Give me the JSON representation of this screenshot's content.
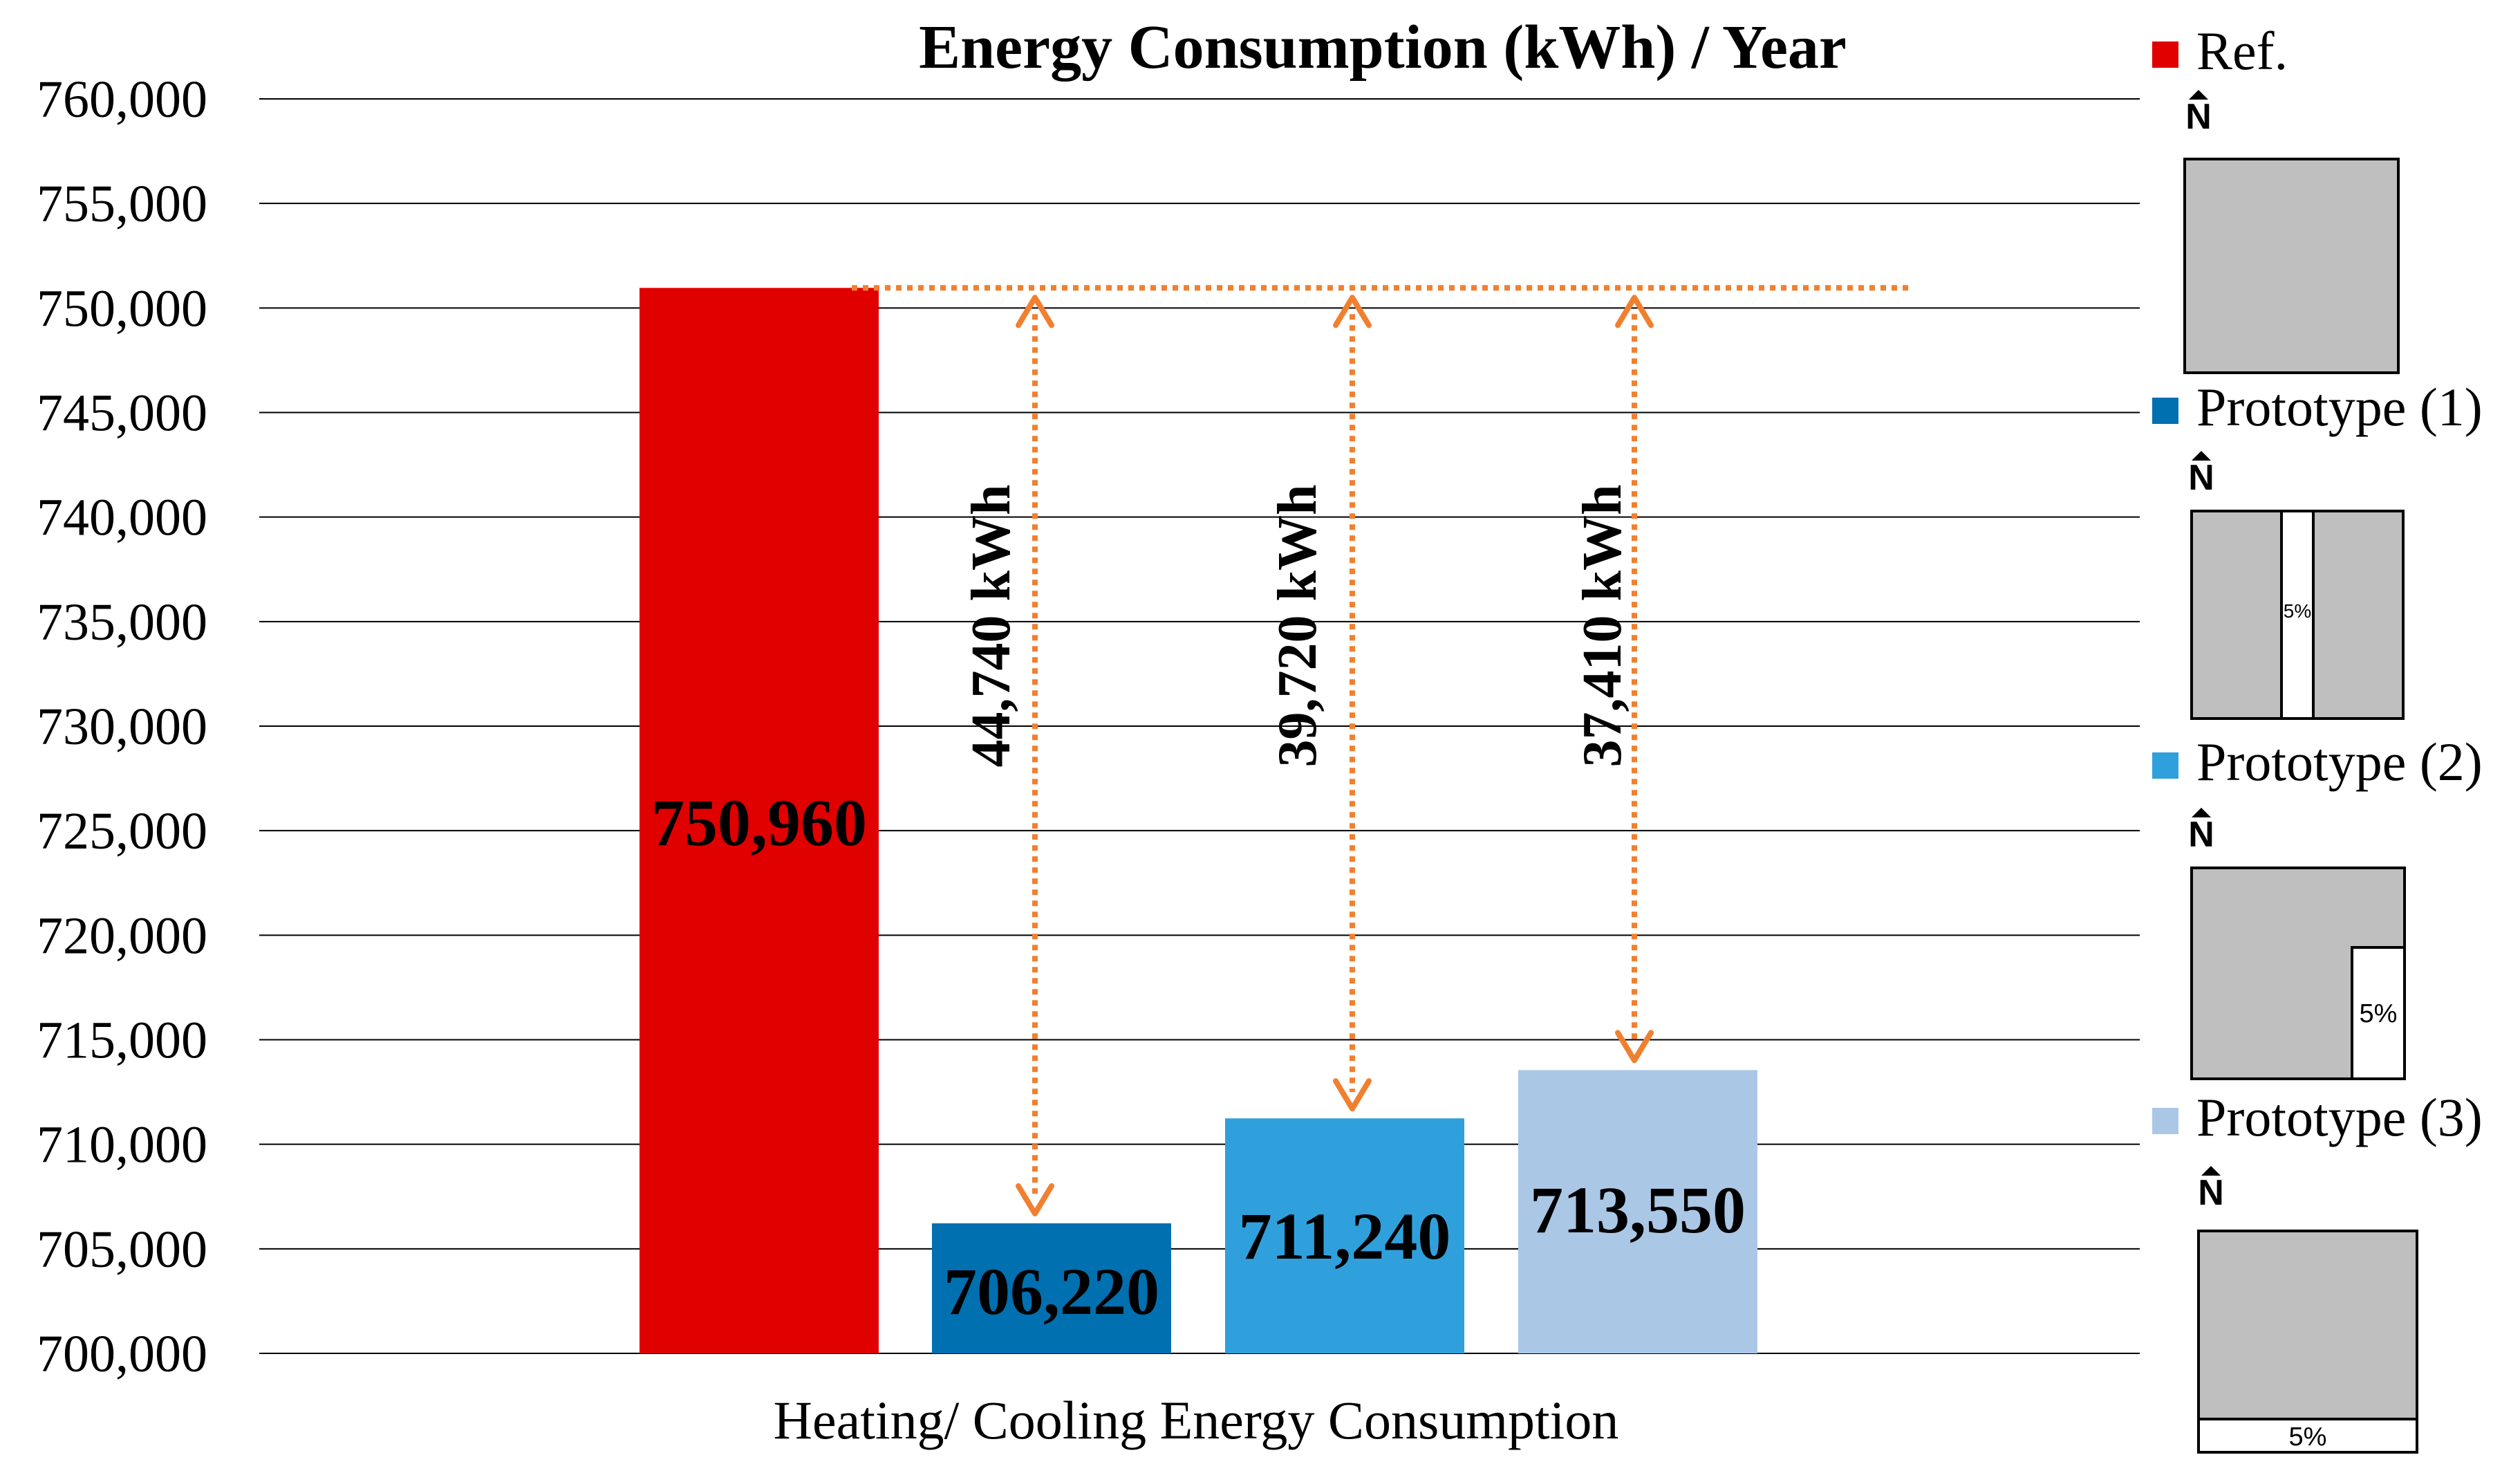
{
  "chart_data": {
    "type": "bar",
    "title": "Energy Consumption (kWh) / Year",
    "xlabel": "Heating/ Cooling Energy Consumption",
    "ylabel": "",
    "ylim": [
      700000,
      760000
    ],
    "y_ticks": [
      700000,
      705000,
      710000,
      715000,
      720000,
      725000,
      730000,
      735000,
      740000,
      745000,
      750000,
      755000,
      760000
    ],
    "y_tick_labels": [
      "700,000",
      "705,000",
      "710,000",
      "715,000",
      "720,000",
      "725,000",
      "730,000",
      "735,000",
      "740,000",
      "745,000",
      "750,000",
      "755,000",
      "760,000"
    ],
    "grid": true,
    "legend_position": "right",
    "series": [
      {
        "name": "Ref.",
        "color": "#e00000",
        "value": 750960,
        "label": "750,960"
      },
      {
        "name": "Prototype (1)",
        "color": "#0070b0",
        "value": 706220,
        "label": "706,220"
      },
      {
        "name": "Prototype (2)",
        "color": "#30a0dc",
        "value": 711240,
        "label": "711,240"
      },
      {
        "name": "Prototype (3)",
        "color": "#abc7e6",
        "value": 713550,
        "label": "713,550"
      }
    ],
    "annotations": [
      {
        "text": "44,740 kWh",
        "to_series": 1
      },
      {
        "text": "39,720 kWh",
        "to_series": 2
      },
      {
        "text": "37,410 kWh",
        "to_series": 3
      }
    ],
    "reference_line": {
      "value": 750960,
      "color": "#f08030",
      "style": "dotted"
    }
  },
  "legend_diagrams": [
    {
      "north_label": "N",
      "opening_label": ""
    },
    {
      "north_label": "N",
      "opening_label": "5%"
    },
    {
      "north_label": "N",
      "opening_label": "5%"
    },
    {
      "north_label": "N",
      "opening_label": "5%"
    }
  ]
}
